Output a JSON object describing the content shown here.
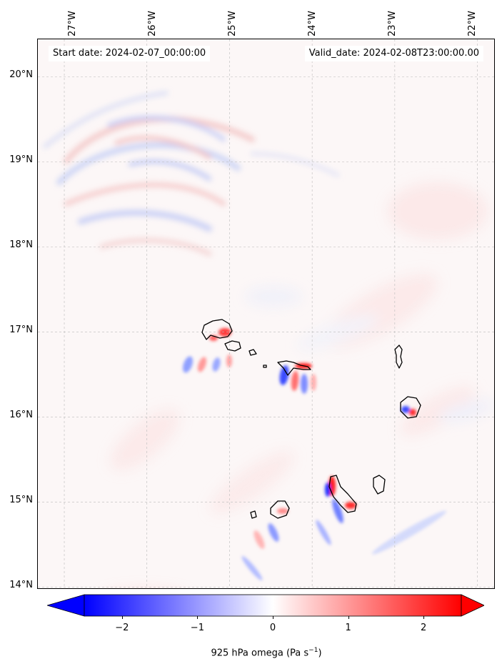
{
  "header": {
    "start_date": "Start date: 2024-02-07_00:00:00",
    "valid_date": "Valid_date: 2024-02-08T23:00:00.00"
  },
  "map": {
    "longitude_labels": [
      "27°W",
      "26°W",
      "25°W",
      "24°W",
      "23°W",
      "22°W"
    ],
    "latitude_labels": [
      "20°N",
      "19°N",
      "18°N",
      "17°N",
      "16°N",
      "15°N",
      "14°N"
    ],
    "longitude_values": [
      -27,
      -26,
      -25,
      -24,
      -23,
      -22
    ],
    "latitude_values": [
      20,
      19,
      18,
      17,
      16,
      15,
      14
    ],
    "extent": {
      "lon_min": -27.32,
      "lon_max": -21.78,
      "lat_min": 13.97,
      "lat_max": 20.44
    },
    "gridlines": "dashed-grey",
    "islands": [
      "Santo Antão",
      "São Vicente",
      "Santa Luzia",
      "São Nicolau",
      "Sal",
      "Boa Vista",
      "Maio",
      "Santiago",
      "Fogo",
      "Brava"
    ],
    "field_colors": {
      "negative": "#0000ff",
      "zero": "#ffffff",
      "positive": "#ff0000"
    }
  },
  "colorbar": {
    "ticks": [
      "−2",
      "−1",
      "0",
      "1",
      "2"
    ],
    "tick_values": [
      -2,
      -1,
      0,
      1,
      2
    ],
    "range": [
      -2.5,
      2.5
    ],
    "label_prefix": "925 hPa omega (Pa s",
    "label_exp": "−1",
    "label_suffix": ")",
    "extend": "both",
    "colormap": "bwr"
  }
}
